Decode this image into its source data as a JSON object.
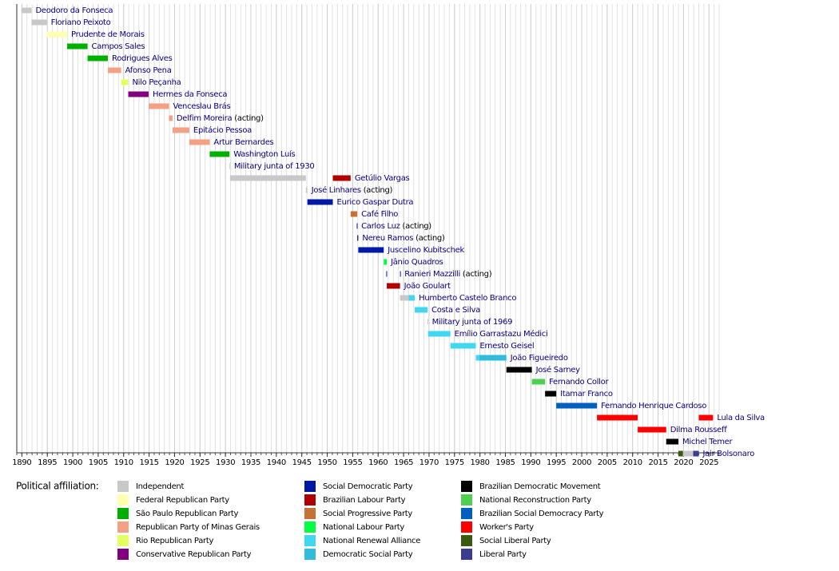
{
  "chart_data": {
    "type": "timeline",
    "xlim": [
      1889,
      2027
    ],
    "xticks": [
      1890,
      1895,
      1900,
      1905,
      1910,
      1915,
      1920,
      1925,
      1930,
      1935,
      1940,
      1945,
      1950,
      1955,
      1960,
      1965,
      1970,
      1975,
      1980,
      1985,
      1990,
      1995,
      2000,
      2005,
      2010,
      2015,
      2020,
      2025
    ],
    "grid": true,
    "legend_title": "Political affiliation:",
    "parties": [
      {
        "name": "Independent",
        "color": "#c8c8c8"
      },
      {
        "name": "Federal Republican Party",
        "color": "#ffffb0"
      },
      {
        "name": "São Paulo Republican Party",
        "color": "#00b000"
      },
      {
        "name": "Republican Party of Minas Gerais",
        "color": "#f4a084"
      },
      {
        "name": "Rio Republican Party",
        "color": "#e5ff60"
      },
      {
        "name": "Conservative Republican Party",
        "color": "#800080"
      },
      {
        "name": "Social Democratic Party",
        "color": "#0018a8"
      },
      {
        "name": "Brazilian Labour Party",
        "color": "#b00000"
      },
      {
        "name": "Social Progressive Party",
        "color": "#c87137"
      },
      {
        "name": "National Labour Party",
        "color": "#00ff40"
      },
      {
        "name": "National Renewal Alliance",
        "color": "#40d8f0"
      },
      {
        "name": "Democratic Social Party",
        "color": "#30bcdc"
      },
      {
        "name": "Brazilian Democratic Movement",
        "color": "#000000"
      },
      {
        "name": "National Reconstruction Party",
        "color": "#50d050"
      },
      {
        "name": "Brazilian Social Democracy Party",
        "color": "#0060c0"
      },
      {
        "name": "Worker's Party",
        "color": "#ff0000"
      },
      {
        "name": "Social Liberal Party",
        "color": "#3a5a10"
      },
      {
        "name": "Liberal Party",
        "color": "#3c3c90"
      }
    ],
    "rows": [
      {
        "name": "Deodoro da Fonseca",
        "segments": [
          {
            "start": 1889.9,
            "end": 1891.9,
            "party": "Independent"
          }
        ]
      },
      {
        "name": "Floriano Peixoto",
        "segments": [
          {
            "start": 1891.9,
            "end": 1894.9,
            "party": "Independent"
          }
        ]
      },
      {
        "name": "Prudente de Morais",
        "segments": [
          {
            "start": 1894.9,
            "end": 1898.9,
            "party": "Federal Republican Party"
          }
        ]
      },
      {
        "name": "Campos Sales",
        "segments": [
          {
            "start": 1898.9,
            "end": 1902.9,
            "party": "São Paulo Republican Party"
          }
        ]
      },
      {
        "name": "Rodrigues Alves",
        "segments": [
          {
            "start": 1902.9,
            "end": 1906.9,
            "party": "São Paulo Republican Party"
          }
        ]
      },
      {
        "name": "Afonso Pena",
        "segments": [
          {
            "start": 1906.9,
            "end": 1909.5,
            "party": "Republican Party of Minas Gerais"
          }
        ]
      },
      {
        "name": "Nilo Peçanha",
        "segments": [
          {
            "start": 1909.5,
            "end": 1910.9,
            "party": "Rio Republican Party"
          }
        ]
      },
      {
        "name": "Hermes da Fonseca",
        "segments": [
          {
            "start": 1910.9,
            "end": 1914.9,
            "party": "Conservative Republican Party"
          }
        ]
      },
      {
        "name": "Venceslau Brás",
        "segments": [
          {
            "start": 1914.9,
            "end": 1918.9,
            "party": "Republican Party of Minas Gerais"
          }
        ]
      },
      {
        "name": "Delfim Moreira",
        "note": "(acting)",
        "segments": [
          {
            "start": 1918.9,
            "end": 1919.6,
            "party": "Republican Party of Minas Gerais"
          }
        ]
      },
      {
        "name": "Epitácio Pessoa",
        "segments": [
          {
            "start": 1919.6,
            "end": 1922.9,
            "party": "Republican Party of Minas Gerais"
          }
        ]
      },
      {
        "name": "Artur Bernardes",
        "segments": [
          {
            "start": 1922.9,
            "end": 1926.9,
            "party": "Republican Party of Minas Gerais"
          }
        ]
      },
      {
        "name": "Washington Luís",
        "segments": [
          {
            "start": 1926.9,
            "end": 1930.8,
            "party": "São Paulo Republican Party"
          }
        ]
      },
      {
        "name": "Military junta of 1930",
        "segments": [
          {
            "start": 1930.8,
            "end": 1930.9,
            "party": "Independent"
          }
        ]
      },
      {
        "name": "Getúlio Vargas",
        "segments": [
          {
            "start": 1930.9,
            "end": 1945.8,
            "party": "Independent"
          },
          {
            "start": 1951.1,
            "end": 1954.6,
            "party": "Brazilian Labour Party"
          }
        ]
      },
      {
        "name": "José Linhares",
        "note": "(acting)",
        "segments": [
          {
            "start": 1945.8,
            "end": 1946.1,
            "party": "Independent"
          }
        ]
      },
      {
        "name": "Eurico Gaspar Dutra",
        "segments": [
          {
            "start": 1946.1,
            "end": 1951.1,
            "party": "Social Democratic Party"
          }
        ]
      },
      {
        "name": "Café Filho",
        "segments": [
          {
            "start": 1954.6,
            "end": 1955.9,
            "party": "Social Progressive Party"
          }
        ]
      },
      {
        "name": "Carlos Luz",
        "note": "(acting)",
        "segments": [
          {
            "start": 1955.8,
            "end": 1955.9,
            "party": "Social Democratic Party"
          }
        ]
      },
      {
        "name": "Nereu Ramos",
        "note": "(acting)",
        "segments": [
          {
            "start": 1955.9,
            "end": 1956.1,
            "party": "Social Democratic Party"
          }
        ]
      },
      {
        "name": "Juscelino Kubitschek",
        "segments": [
          {
            "start": 1956.1,
            "end": 1961.1,
            "party": "Social Democratic Party"
          }
        ]
      },
      {
        "name": "Jânio Quadros",
        "segments": [
          {
            "start": 1961.1,
            "end": 1961.7,
            "party": "National Labour Party"
          }
        ]
      },
      {
        "name": "Ranieri Mazzilli",
        "note": "(acting)",
        "segments": [
          {
            "start": 1961.6,
            "end": 1961.7,
            "party": "Social Democratic Party"
          },
          {
            "start": 1964.3,
            "end": 1964.4,
            "party": "Social Democratic Party"
          }
        ]
      },
      {
        "name": "João Goulart",
        "segments": [
          {
            "start": 1961.7,
            "end": 1964.3,
            "party": "Brazilian Labour Party"
          }
        ]
      },
      {
        "name": "Humberto Castelo Branco",
        "segments": [
          {
            "start": 1964.3,
            "end": 1966,
            "party": "Independent"
          },
          {
            "start": 1966,
            "end": 1967.2,
            "party": "National Renewal Alliance"
          }
        ]
      },
      {
        "name": "Costa e Silva",
        "segments": [
          {
            "start": 1967.2,
            "end": 1969.7,
            "party": "National Renewal Alliance"
          }
        ]
      },
      {
        "name": "Military junta of 1969",
        "segments": [
          {
            "start": 1969.7,
            "end": 1969.8,
            "party": "Independent"
          }
        ]
      },
      {
        "name": "Emílio Garrastazu Médici",
        "segments": [
          {
            "start": 1969.8,
            "end": 1974.2,
            "party": "National Renewal Alliance"
          }
        ]
      },
      {
        "name": "Ernesto Geisel",
        "segments": [
          {
            "start": 1974.2,
            "end": 1979.2,
            "party": "National Renewal Alliance"
          }
        ]
      },
      {
        "name": "João Figueiredo",
        "segments": [
          {
            "start": 1979.2,
            "end": 1979.9,
            "party": "National Renewal Alliance"
          },
          {
            "start": 1979.9,
            "end": 1985.2,
            "party": "Democratic Social Party"
          }
        ]
      },
      {
        "name": "José Sarney",
        "segments": [
          {
            "start": 1985.2,
            "end": 1990.2,
            "party": "Brazilian Democratic Movement"
          }
        ]
      },
      {
        "name": "Fernando Collor",
        "segments": [
          {
            "start": 1990.2,
            "end": 1992.8,
            "party": "National Reconstruction Party"
          }
        ]
      },
      {
        "name": "Itamar Franco",
        "segments": [
          {
            "start": 1992.8,
            "end": 1995,
            "party": "Brazilian Democratic Movement"
          }
        ]
      },
      {
        "name": "Fernando Henrique Cardoso",
        "segments": [
          {
            "start": 1995,
            "end": 2003,
            "party": "Brazilian Social Democracy Party"
          }
        ]
      },
      {
        "name": "Lula da Silva",
        "segments": [
          {
            "start": 2003,
            "end": 2011,
            "party": "Worker's Party"
          },
          {
            "start": 2023,
            "end": 2025.8,
            "party": "Worker's Party"
          }
        ]
      },
      {
        "name": "Dilma Rousseff",
        "segments": [
          {
            "start": 2011,
            "end": 2016.6,
            "party": "Worker's Party"
          }
        ]
      },
      {
        "name": "Michel Temer",
        "segments": [
          {
            "start": 2016.6,
            "end": 2019,
            "party": "Brazilian Democratic Movement"
          }
        ]
      },
      {
        "name": "Jair Bolsonaro",
        "segments": [
          {
            "start": 2019,
            "end": 2019.9,
            "party": "Social Liberal Party"
          },
          {
            "start": 2019.9,
            "end": 2021.9,
            "party": "Independent"
          },
          {
            "start": 2021.9,
            "end": 2023,
            "party": "Liberal Party"
          }
        ]
      }
    ]
  }
}
